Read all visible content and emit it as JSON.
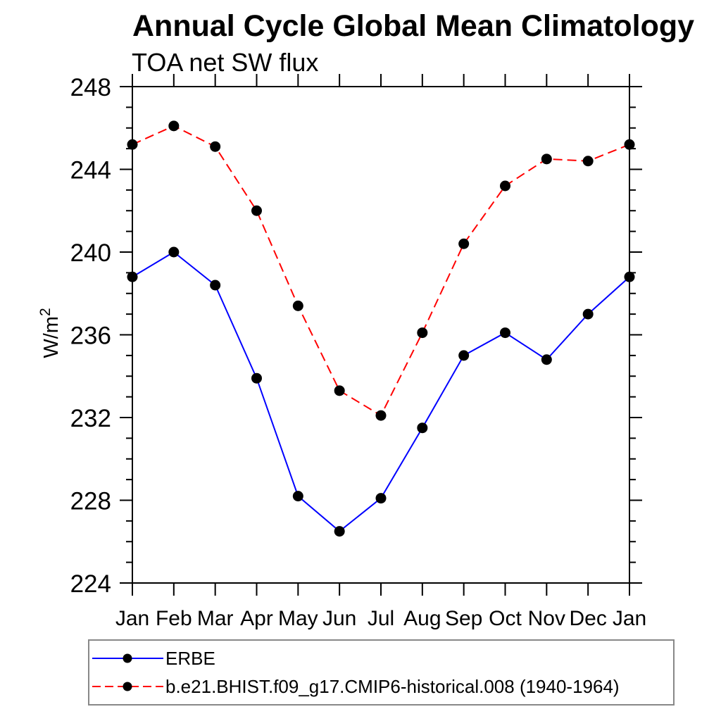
{
  "chart_data": {
    "type": "line",
    "title": "Annual Cycle Global Mean Climatology",
    "subtitle": "TOA net SW flux",
    "ylabel_base": "W/m",
    "ylabel_sup": "2",
    "categories": [
      "Jan",
      "Feb",
      "Mar",
      "Apr",
      "May",
      "Jun",
      "Jul",
      "Aug",
      "Sep",
      "Oct",
      "Nov",
      "Dec",
      "Jan"
    ],
    "ylim": [
      224,
      248
    ],
    "ytick_major": 4,
    "ytick_minor": 1,
    "ytick_labels": [
      "224",
      "228",
      "232",
      "236",
      "240",
      "244",
      "248"
    ],
    "grid": "off",
    "legend_position": "bottom-left",
    "axis_color": "#000000",
    "marker_color": "#000000",
    "series": [
      {
        "name": "ERBE",
        "color": "#0000ff",
        "style": "solid",
        "values": [
          238.8,
          240.0,
          238.4,
          233.9,
          228.2,
          226.5,
          228.1,
          231.5,
          235.0,
          236.1,
          234.8,
          237.0,
          238.8
        ]
      },
      {
        "name": "b.e21.BHIST.f09_g17.CMIP6-historical.008 (1940-1964)",
        "color": "#ff0000",
        "style": "dashed",
        "values": [
          245.2,
          246.1,
          245.1,
          242.0,
          237.4,
          233.3,
          232.1,
          236.1,
          240.4,
          243.2,
          244.5,
          244.4,
          245.2
        ]
      }
    ]
  }
}
